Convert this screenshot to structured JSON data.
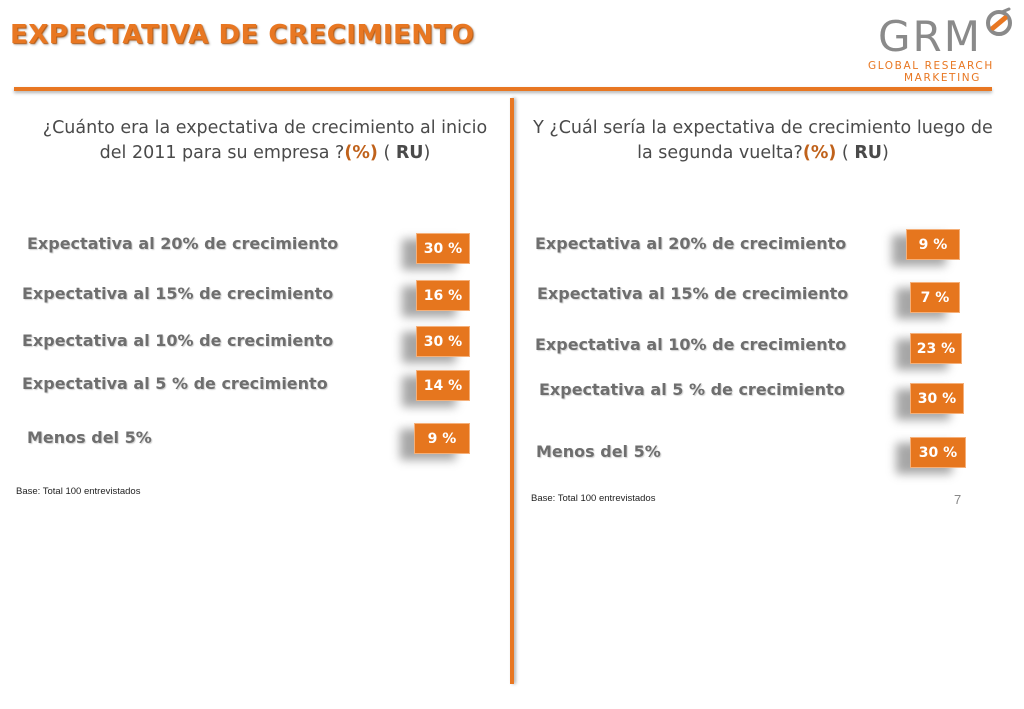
{
  "title": "EXPECTATIVA DE CRECIMIENTO",
  "logo": {
    "main": "GRM",
    "line1": "GLOBAL RESEARCH",
    "line2": "MARKETING"
  },
  "left": {
    "question_text": "¿Cuánto era la expectativa de crecimiento al inicio del 2011 para su empresa ?",
    "question_pct": "(%)",
    "question_ru_open": " ( ",
    "question_ru": "RU",
    "question_ru_close": ")",
    "items": [
      {
        "label": "Expectativa al 20% de crecimiento",
        "value": "30 %"
      },
      {
        "label": "Expectativa al 15% de crecimiento",
        "value": "16 %"
      },
      {
        "label": "Expectativa al 10% de crecimiento",
        "value": "30 %"
      },
      {
        "label": "Expectativa al 5 % de crecimiento",
        "value": "14 %"
      },
      {
        "label": "Menos del 5%",
        "value": "9 %"
      }
    ],
    "base": "Base: Total  100  entrevistados"
  },
  "right": {
    "question_text": "Y ¿Cuál sería la expectativa de crecimiento luego de la segunda vuelta?",
    "question_pct": "(%)",
    "question_ru_open": " ( ",
    "question_ru": "RU",
    "question_ru_close": ")",
    "items": [
      {
        "label": "Expectativa al 20% de crecimiento",
        "value": "9 %"
      },
      {
        "label": "Expectativa al 15% de crecimiento",
        "value": "7 %"
      },
      {
        "label": "Expectativa al 10% de crecimiento",
        "value": "23 %"
      },
      {
        "label": "Expectativa al 5 % de crecimiento",
        "value": "30 %"
      },
      {
        "label": "Menos del 5%",
        "value": "30 %"
      }
    ],
    "base": "Base: Total  100  entrevistados"
  },
  "page_number": "7",
  "colors": {
    "accent": "#e87722",
    "badge": "#e6761e",
    "text": "#6e6e6e"
  }
}
